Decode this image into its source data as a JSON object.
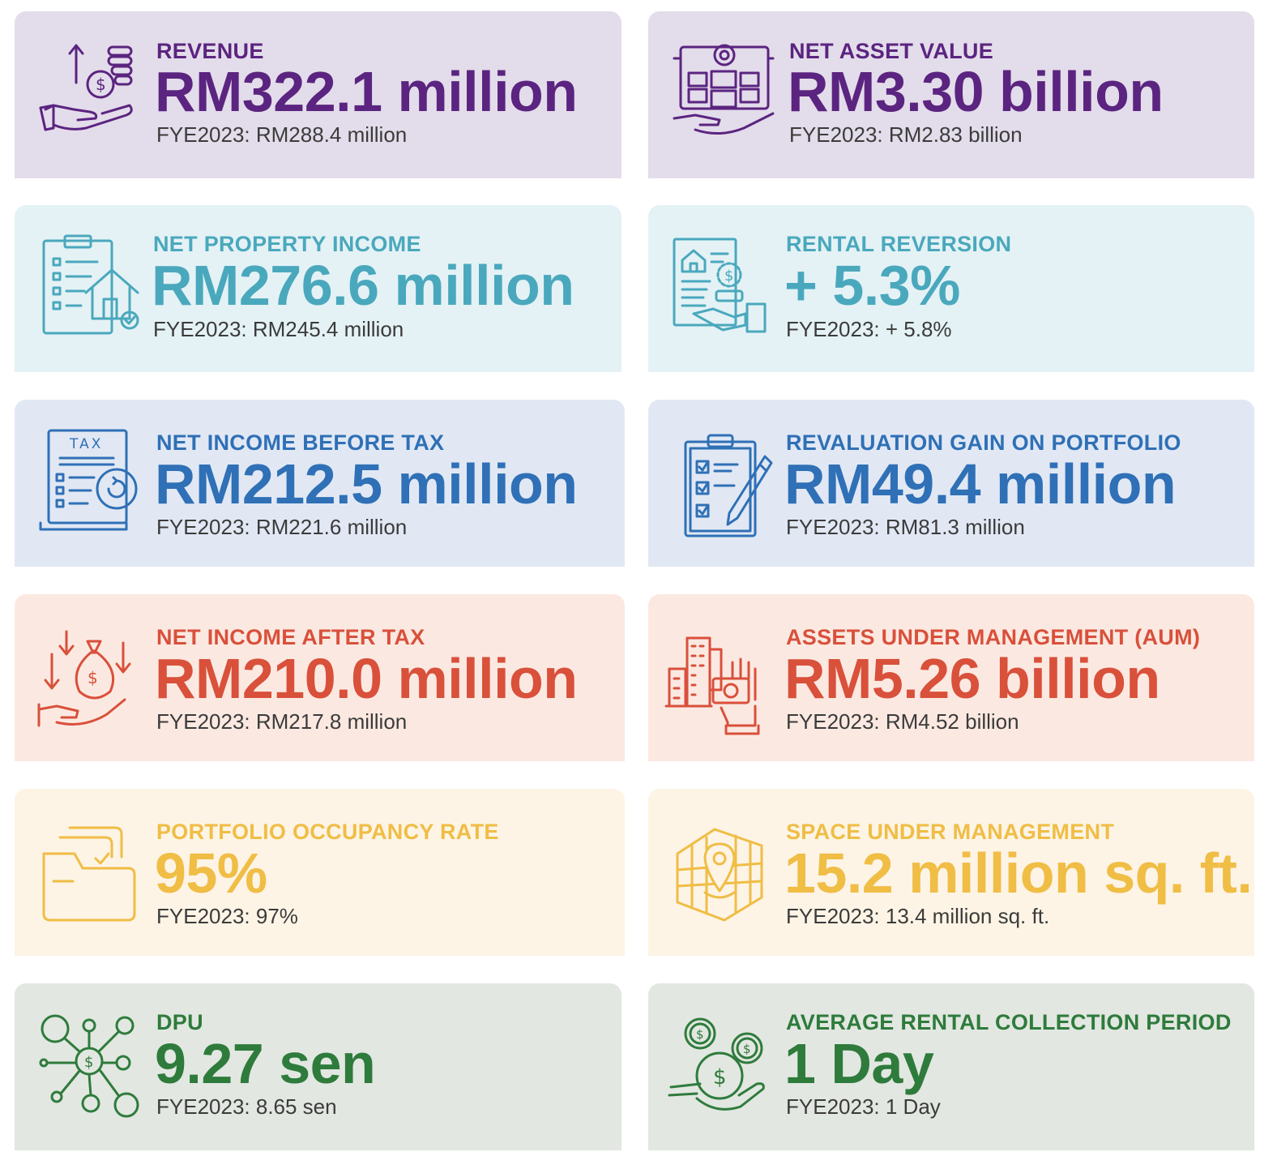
{
  "colors": {
    "purple": "#5b2480",
    "purple_bg": "#e3dcea",
    "teal": "#4aa8bd",
    "teal_bg": "#e4f2f5",
    "blue": "#2f70b6",
    "blue_bg": "#e1e8f4",
    "red": "#d9503b",
    "red_bg": "#fbe9e1",
    "yellow": "#f0bd45",
    "yellow_bg": "#fdf4e5",
    "green": "#2e7b3c",
    "green_bg": "#e2e7e1"
  },
  "cards": [
    {
      "id": "revenue",
      "icon": "hand-coins-icon",
      "label": "REVENUE",
      "value": "RM322.1 million",
      "prior": "FYE2023: RM288.4 million"
    },
    {
      "id": "nav",
      "icon": "building-gear-icon",
      "label": "NET ASSET VALUE",
      "value": "RM3.30 billion",
      "prior": "FYE2023: RM2.83 billion"
    },
    {
      "id": "npi",
      "icon": "clipboard-house-icon",
      "label": "NET PROPERTY INCOME",
      "value": "RM276.6 million",
      "prior": "FYE2023: RM245.4 million"
    },
    {
      "id": "reversion",
      "icon": "rent-document-icon",
      "label": "RENTAL REVERSION",
      "value": "+ 5.3%",
      "prior": "FYE2023: + 5.8%"
    },
    {
      "id": "nibt",
      "icon": "tax-document-icon",
      "label": "NET INCOME BEFORE TAX",
      "value": "RM212.5 million",
      "prior": "FYE2023: RM221.6 million"
    },
    {
      "id": "revaluation",
      "icon": "checklist-pencil-icon",
      "label": "REVALUATION GAIN ON PORTFOLIO",
      "value": "RM49.4 million",
      "prior": "FYE2023: RM81.3 million"
    },
    {
      "id": "niat",
      "icon": "money-bag-hand-icon",
      "label": "NET INCOME AFTER TAX",
      "value": "RM210.0 million",
      "prior": "FYE2023: RM217.8 million"
    },
    {
      "id": "aum",
      "icon": "buildings-hand-cash-icon",
      "label": "ASSETS UNDER MANAGEMENT (AUM)",
      "value": "RM5.26 billion",
      "prior": "FYE2023: RM4.52 billion"
    },
    {
      "id": "occupancy",
      "icon": "folder-check-icon",
      "label": "PORTFOLIO OCCUPANCY RATE",
      "value": "95%",
      "prior": "FYE2023: 97%"
    },
    {
      "id": "space",
      "icon": "map-pin-grid-icon",
      "label": "SPACE UNDER MANAGEMENT",
      "value": "15.2 million sq. ft.",
      "prior": "FYE2023: 13.4 million sq. ft."
    },
    {
      "id": "dpu",
      "icon": "dollar-network-icon",
      "label": "DPU",
      "value": "9.27 sen",
      "prior": "FYE2023: 8.65 sen"
    },
    {
      "id": "collection",
      "icon": "coins-hand-icon",
      "label": "AVERAGE RENTAL COLLECTION PERIOD",
      "value": "1 Day",
      "prior": "FYE2023: 1 Day"
    }
  ]
}
